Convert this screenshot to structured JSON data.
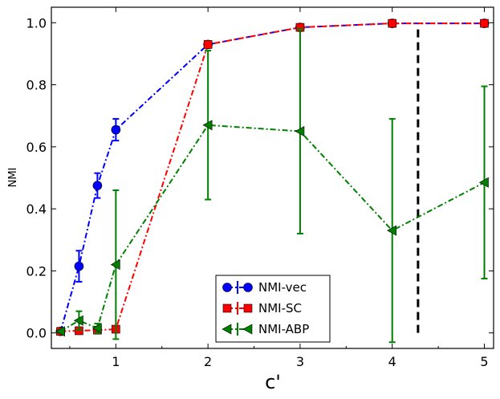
{
  "chart_data": {
    "type": "line",
    "xlabel": "c'",
    "ylabel": "NMI",
    "xlim": [
      0.3,
      5.1
    ],
    "ylim": [
      -0.05,
      1.05
    ],
    "xticks": [
      1,
      2,
      3,
      4,
      5
    ],
    "yticks": [
      0.0,
      0.2,
      0.4,
      0.6,
      0.8,
      1.0
    ],
    "xtick_labels": [
      "1",
      "2",
      "3",
      "4",
      "5"
    ],
    "ytick_labels": [
      "0.0",
      "0.2",
      "0.4",
      "0.6",
      "0.8",
      "1.0"
    ],
    "legend_position": "lower-center",
    "grid": false,
    "series": [
      {
        "name": "NMI-vec",
        "color": "#0000ff",
        "marker": "circle",
        "points": [
          {
            "x": 0.4,
            "y": 0.005,
            "err": 0.005
          },
          {
            "x": 0.6,
            "y": 0.215,
            "err": 0.05
          },
          {
            "x": 0.8,
            "y": 0.475,
            "err": 0.04
          },
          {
            "x": 1.0,
            "y": 0.655,
            "err": 0.035
          },
          {
            "x": 2.0,
            "y": 0.93,
            "err": 0.01
          },
          {
            "x": 3.0,
            "y": 0.985,
            "err": 0.005
          },
          {
            "x": 4.0,
            "y": 0.998,
            "err": 0.003
          },
          {
            "x": 5.0,
            "y": 0.998,
            "err": 0.003
          }
        ]
      },
      {
        "name": "NMI-SC",
        "color": "#ff0000",
        "marker": "square",
        "points": [
          {
            "x": 0.4,
            "y": 0.005,
            "err": 0.003
          },
          {
            "x": 0.6,
            "y": 0.007,
            "err": 0.003
          },
          {
            "x": 0.8,
            "y": 0.009,
            "err": 0.003
          },
          {
            "x": 1.0,
            "y": 0.012,
            "err": 0.004
          },
          {
            "x": 2.0,
            "y": 0.93,
            "err": 0.01
          },
          {
            "x": 3.0,
            "y": 0.985,
            "err": 0.008
          },
          {
            "x": 4.0,
            "y": 0.998,
            "err": 0.003
          },
          {
            "x": 5.0,
            "y": 0.998,
            "err": 0.003
          }
        ]
      },
      {
        "name": "NMI-ABP",
        "color": "#008000",
        "marker": "triangle-left",
        "points": [
          {
            "x": 0.4,
            "y": 0.005,
            "err": 0.005
          },
          {
            "x": 0.6,
            "y": 0.04,
            "err": 0.03
          },
          {
            "x": 0.8,
            "y": 0.015,
            "err": 0.015
          },
          {
            "x": 1.0,
            "y": 0.22,
            "err": 0.24
          },
          {
            "x": 2.0,
            "y": 0.67,
            "err": 0.24
          },
          {
            "x": 3.0,
            "y": 0.65,
            "err": 0.33
          },
          {
            "x": 4.0,
            "y": 0.33,
            "err": 0.36
          },
          {
            "x": 5.0,
            "y": 0.485,
            "err": 0.31
          }
        ]
      }
    ],
    "annotations": [
      {
        "type": "vertical-dashed-line",
        "x": 4.28,
        "y_from": 0.0,
        "y_to": 0.99,
        "color": "#000000"
      }
    ]
  }
}
